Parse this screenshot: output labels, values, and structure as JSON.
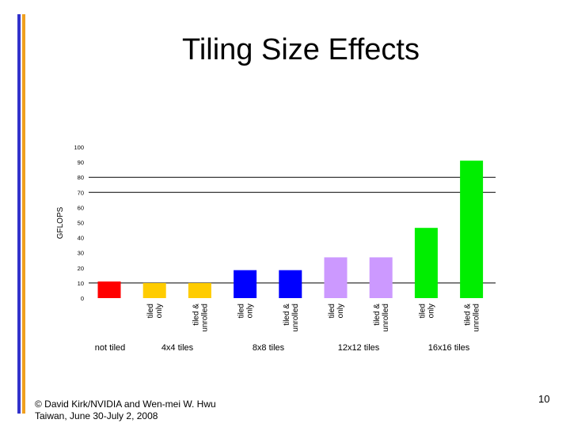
{
  "slide": {
    "title": "Tiling Size Effects",
    "footer_line1": "© David Kirk/NVIDIA and Wen-mei W. Hwu",
    "footer_line2": "Taiwan, June 30-July 2, 2008",
    "page_number": "10"
  },
  "colors": {
    "left_bar_blue": "#3333cc",
    "left_bar_orange": "#f0a020"
  },
  "chart_data": {
    "type": "bar",
    "title": "",
    "xlabel": "",
    "ylabel": "GFLOPS",
    "ylim": [
      0,
      100
    ],
    "yticks": [
      0,
      10,
      20,
      30,
      40,
      50,
      60,
      70,
      80,
      90,
      100
    ],
    "gridlines": [
      10,
      70,
      80
    ],
    "legend": "none",
    "bars": [
      {
        "label": "",
        "group": "not tiled",
        "value": 11,
        "color": "#ff0000"
      },
      {
        "label": "tiled only",
        "group": "4x4 tiles",
        "value": 10,
        "color": "#ffcc00"
      },
      {
        "label": "tiled & unrolled",
        "group": "4x4 tiles",
        "value": 10,
        "color": "#ffcc00"
      },
      {
        "label": "tiled only",
        "group": "8x8 tiles",
        "value": 18.5,
        "color": "#0000ff"
      },
      {
        "label": "tiled & unrolled",
        "group": "8x8 tiles",
        "value": 18.5,
        "color": "#0000ff"
      },
      {
        "label": "tiled only",
        "group": "12x12 tiles",
        "value": 27,
        "color": "#cc99ff"
      },
      {
        "label": "tiled & unrolled",
        "group": "12x12 tiles",
        "value": 27,
        "color": "#cc99ff"
      },
      {
        "label": "tiled only",
        "group": "16x16 tiles",
        "value": 46.5,
        "color": "#00ee00"
      },
      {
        "label": "tiled & unrolled",
        "group": "16x16 tiles",
        "value": 91,
        "color": "#00ee00"
      }
    ],
    "groups": [
      "not tiled",
      "4x4 tiles",
      "8x8 tiles",
      "12x12 tiles",
      "16x16 tiles"
    ]
  }
}
